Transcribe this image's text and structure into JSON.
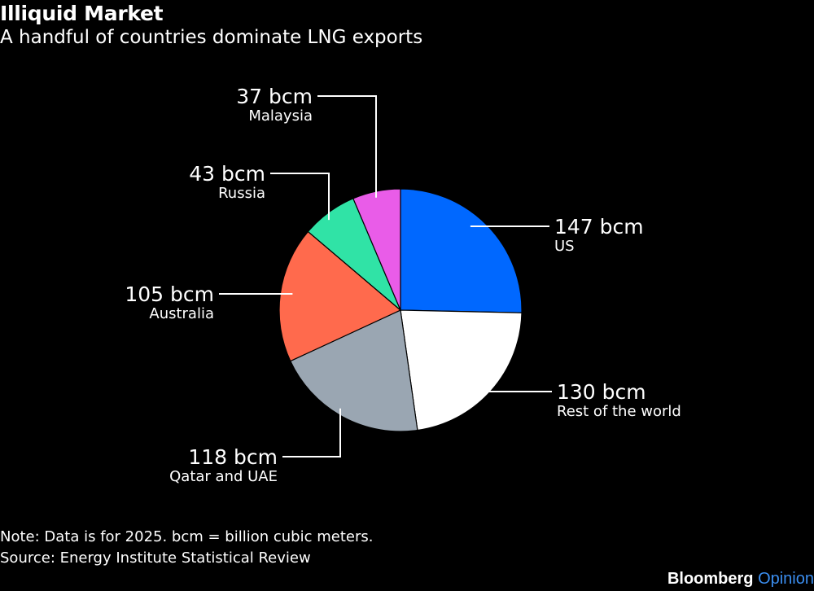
{
  "header": {
    "title": "Illiquid Market",
    "subtitle": "A handful of countries dominate LNG exports"
  },
  "footer": {
    "note": "Note: Data is for 2025. bcm = billion cubic meters.",
    "source": "Source: Energy Institute Statistical Review",
    "brand_main": "Bloomberg",
    "brand_accent": "Opinion"
  },
  "chart_data": {
    "type": "pie",
    "title": "Illiquid Market",
    "subtitle": "A handful of countries dominate LNG exports",
    "unit": "bcm",
    "start": "12 o'clock, clockwise",
    "slices": [
      {
        "label": "US",
        "value": 147,
        "value_label": "147 bcm",
        "color": "#0068ff"
      },
      {
        "label": "Rest of the world",
        "value": 130,
        "value_label": "130 bcm",
        "color": "#ffffff"
      },
      {
        "label": "Qatar and UAE",
        "value": 118,
        "value_label": "118 bcm",
        "color": "#9aa6b2"
      },
      {
        "label": "Australia",
        "value": 105,
        "value_label": "105 bcm",
        "color": "#ff6a4d"
      },
      {
        "label": "Russia",
        "value": 43,
        "value_label": "43 bcm",
        "color": "#30e3a6"
      },
      {
        "label": "Malaysia",
        "value": 37,
        "value_label": "37 bcm",
        "color": "#e95ce8"
      }
    ]
  }
}
